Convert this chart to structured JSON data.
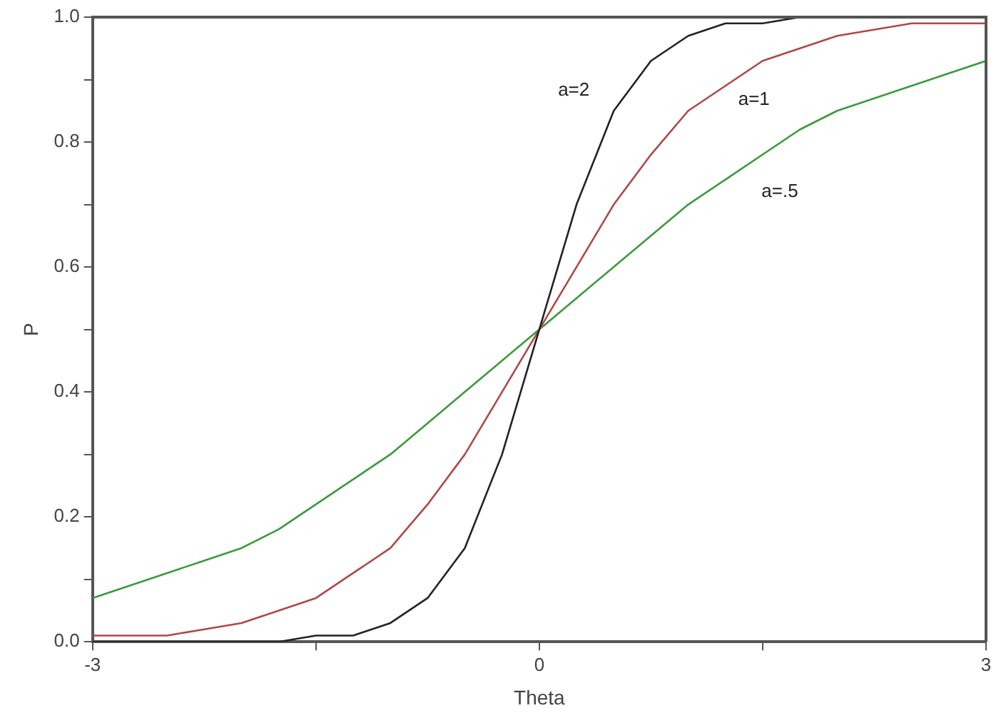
{
  "chart_data": {
    "type": "line",
    "xlabel": "Theta",
    "ylabel": "P",
    "x": [
      -3,
      -2.75,
      -2.5,
      -2.25,
      -2,
      -1.75,
      -1.5,
      -1.25,
      -1,
      -0.75,
      -0.5,
      -0.25,
      0,
      0.25,
      0.5,
      0.75,
      1,
      1.25,
      1.5,
      1.75,
      2,
      2.25,
      2.5,
      2.75,
      3
    ],
    "series": [
      {
        "name": "a=2",
        "color": "#222222",
        "values": [
          0,
          0,
          0,
          0,
          0,
          0,
          0.01,
          0.01,
          0.03,
          0.07,
          0.15,
          0.3,
          0.5,
          0.7,
          0.85,
          0.93,
          0.97,
          0.99,
          0.99,
          1,
          1,
          1,
          1,
          1,
          1
        ]
      },
      {
        "name": "a=1",
        "color": "#b04848",
        "values": [
          0.01,
          0.01,
          0.01,
          0.02,
          0.03,
          0.05,
          0.07,
          0.11,
          0.15,
          0.22,
          0.3,
          0.4,
          0.5,
          0.6,
          0.7,
          0.78,
          0.85,
          0.89,
          0.93,
          0.95,
          0.97,
          0.98,
          0.99,
          0.99,
          0.99
        ]
      },
      {
        "name": "a=.5",
        "color": "#3c9a3c",
        "values": [
          0.07,
          0.09,
          0.11,
          0.13,
          0.15,
          0.18,
          0.22,
          0.26,
          0.3,
          0.35,
          0.4,
          0.45,
          0.5,
          0.55,
          0.6,
          0.65,
          0.7,
          0.74,
          0.78,
          0.82,
          0.85,
          0.87,
          0.89,
          0.91,
          0.93
        ]
      }
    ],
    "xlim": [
      -3,
      3
    ],
    "xticks": [
      -3,
      {
        "value": -1.5,
        "label": null
      },
      0,
      {
        "value": 1.5,
        "label": null
      },
      3
    ],
    "ylim": [
      0,
      1
    ],
    "yticks": [
      {
        "value": 0,
        "label": "0.0"
      },
      {
        "value": 0.1,
        "label": null
      },
      0.2,
      {
        "value": 0.3,
        "label": null
      },
      0.4,
      {
        "value": 0.5,
        "label": null
      },
      0.6,
      {
        "value": 0.7,
        "label": null
      },
      0.8,
      {
        "value": 0.9,
        "label": null
      },
      {
        "value": 1,
        "label": "1.0"
      }
    ],
    "grid": false,
    "legend": false,
    "marker": "none",
    "line_style": "solid"
  }
}
